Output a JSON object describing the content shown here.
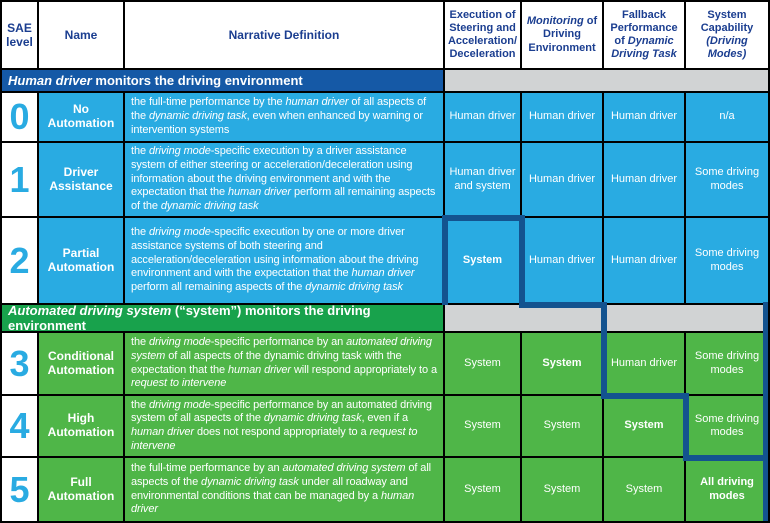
{
  "colors": {
    "cyan": "#29ABE2",
    "green": "#4FB648",
    "blue-bar": "#1559A6",
    "green-bar": "#18A24C",
    "navy-line": "#13538F",
    "gray": "#D1D3D4",
    "header-text": "#1B3E90",
    "grid": "#000000"
  },
  "table": {
    "columns": [
      [
        {
          "t": "SAE level"
        }
      ],
      [
        {
          "t": "Name"
        }
      ],
      [
        {
          "t": "Narrative Definition"
        }
      ],
      [
        {
          "t": "Execution of Steering and Acceleration/ Deceleration"
        }
      ],
      [
        {
          "t": "Monitoring",
          "i": true
        },
        {
          "t": " of Driving Environment"
        }
      ],
      [
        {
          "t": "Fallback Performance of "
        },
        {
          "t": "Dynamic Driving Task",
          "i": true
        }
      ],
      [
        {
          "t": "System Capability "
        },
        {
          "t": "(Driving Modes)",
          "i": true
        }
      ]
    ],
    "sections": [
      {
        "label": [
          {
            "t": "Human driver",
            "i": true
          },
          {
            "t": " monitors the driving environment"
          }
        ]
      },
      {
        "label": [
          {
            "t": "Automated driving system",
            "i": true
          },
          {
            "t": " (“system”) monitors the driving environment"
          }
        ]
      }
    ],
    "rows": [
      {
        "level": "0",
        "name": "No Automation",
        "narrative": [
          {
            "t": "the full-time performance by the "
          },
          {
            "t": "human driver",
            "i": true
          },
          {
            "t": " of all aspects of the "
          },
          {
            "t": "dynamic driving task",
            "i": true
          },
          {
            "t": ", even when enhanced by warning or intervention systems"
          }
        ],
        "cells": [
          [
            {
              "t": "Human driver"
            }
          ],
          [
            {
              "t": "Human driver"
            }
          ],
          [
            {
              "t": "Human driver"
            }
          ],
          [
            {
              "t": "n/a"
            }
          ]
        ]
      },
      {
        "level": "1",
        "name": "Driver Assistance",
        "narrative": [
          {
            "t": "the "
          },
          {
            "t": "driving mode",
            "i": true
          },
          {
            "t": "-specific execution by a driver assistance system of either steering or acceleration/deceleration using information about the driving environment and with the expectation that the "
          },
          {
            "t": "human driver",
            "i": true
          },
          {
            "t": " perform all remaining aspects of the "
          },
          {
            "t": "dynamic driving task",
            "i": true
          }
        ],
        "cells": [
          [
            {
              "t": "Human driver and system"
            }
          ],
          [
            {
              "t": "Human driver"
            }
          ],
          [
            {
              "t": "Human driver"
            }
          ],
          [
            {
              "t": "Some driving modes"
            }
          ]
        ]
      },
      {
        "level": "2",
        "name": "Partial Automation",
        "narrative": [
          {
            "t": "the "
          },
          {
            "t": "driving mode",
            "i": true
          },
          {
            "t": "-specific execution by one or more driver assistance systems of both steering and acceleration/deceleration using information about the driving environment and with the expectation that the "
          },
          {
            "t": "human driver",
            "i": true
          },
          {
            "t": " perform all remaining aspects of the "
          },
          {
            "t": "dynamic driving task",
            "i": true
          }
        ],
        "cells": [
          [
            {
              "t": "System",
              "b": true
            }
          ],
          [
            {
              "t": "Human driver"
            }
          ],
          [
            {
              "t": "Human driver"
            }
          ],
          [
            {
              "t": "Some driving modes"
            }
          ]
        ]
      },
      {
        "level": "3",
        "name": "Conditional Automation",
        "narrative": [
          {
            "t": "the "
          },
          {
            "t": "driving mode",
            "i": true
          },
          {
            "t": "-specific performance by an "
          },
          {
            "t": "automated driving system",
            "i": true
          },
          {
            "t": " of all aspects of the dynamic driving task with the expectation that the "
          },
          {
            "t": "human driver",
            "i": true
          },
          {
            "t": " will respond appropriately to a "
          },
          {
            "t": "request to intervene",
            "i": true
          }
        ],
        "cells": [
          [
            {
              "t": "System"
            }
          ],
          [
            {
              "t": "System",
              "b": true
            }
          ],
          [
            {
              "t": "Human driver"
            }
          ],
          [
            {
              "t": "Some driving modes"
            }
          ]
        ]
      },
      {
        "level": "4",
        "name": "High Automation",
        "narrative": [
          {
            "t": "the "
          },
          {
            "t": "driving mode",
            "i": true
          },
          {
            "t": "-specific performance by an automated driving system of all aspects of the "
          },
          {
            "t": "dynamic driving task",
            "i": true
          },
          {
            "t": ", even if a "
          },
          {
            "t": "human driver",
            "i": true
          },
          {
            "t": " does not respond appropriately to a "
          },
          {
            "t": "request to intervene",
            "i": true
          }
        ],
        "cells": [
          [
            {
              "t": "System"
            }
          ],
          [
            {
              "t": "System"
            }
          ],
          [
            {
              "t": "System",
              "b": true
            }
          ],
          [
            {
              "t": "Some driving modes"
            }
          ]
        ]
      },
      {
        "level": "5",
        "name": "Full Automation",
        "narrative": [
          {
            "t": "the full-time performance by an "
          },
          {
            "t": "automated driving system",
            "i": true
          },
          {
            "t": " of all aspects of the "
          },
          {
            "t": "dynamic driving task",
            "i": true
          },
          {
            "t": " under all roadway and environmental conditions that can be managed by a "
          },
          {
            "t": "human driver",
            "i": true
          }
        ],
        "cells": [
          [
            {
              "t": "System"
            }
          ],
          [
            {
              "t": "System"
            }
          ],
          [
            {
              "t": "System"
            }
          ],
          [
            {
              "t": "All driving modes",
              "b": true
            }
          ]
        ]
      }
    ]
  }
}
